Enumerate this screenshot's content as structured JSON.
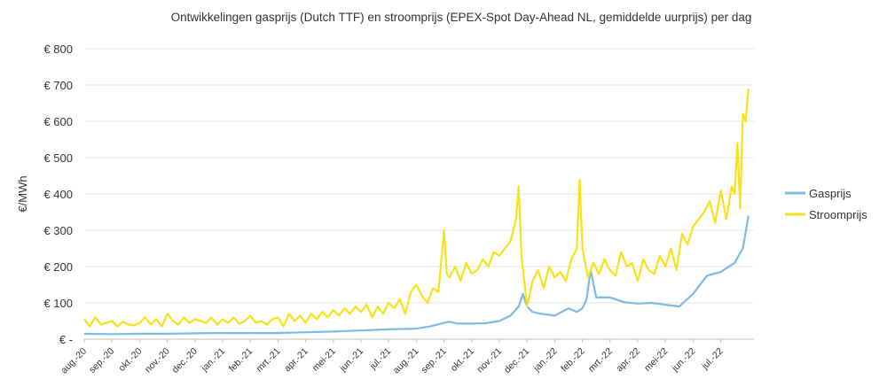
{
  "chart_data": {
    "type": "line",
    "title": "Ontwikkelingen gasprijs (Dutch TTF) en stroomprijs (EPEX-Spot Day-Ahead NL, gemiddelde uurprijs) per dag",
    "ylabel": "€/MWh",
    "ylim": [
      0,
      800
    ],
    "yticks": [
      {
        "value": 0,
        "label": "€ -"
      },
      {
        "value": 100,
        "label": "€ 100"
      },
      {
        "value": 200,
        "label": "€ 200"
      },
      {
        "value": 300,
        "label": "€ 300"
      },
      {
        "value": 400,
        "label": "€ 400"
      },
      {
        "value": 500,
        "label": "€ 500"
      },
      {
        "value": 600,
        "label": "€ 600"
      },
      {
        "value": 700,
        "label": "€ 700"
      },
      {
        "value": 800,
        "label": "€ 800"
      }
    ],
    "x_tick_labels": [
      "aug.-20",
      "sep.-20",
      "okt.-20",
      "nov.-20",
      "dec.-20",
      "jan.-21",
      "feb.-21",
      "mrt.-21",
      "apr.-21",
      "mei-21",
      "jun.-21",
      "jul.-21",
      "aug.-21",
      "sep.-21",
      "okt.-21",
      "nov.-21",
      "dec.-21",
      "jan.-22",
      "feb.-22",
      "mrt.-22",
      "apr.-22",
      "mei-22",
      "jun.-22",
      "jul.-22"
    ],
    "grid": true,
    "legend_position": "right",
    "x_unit": "month index (0 = aug.-20)",
    "series": [
      {
        "name": "Gasprijs",
        "color": "#7fb9e6",
        "x": [
          0,
          1,
          2,
          3,
          4,
          5,
          6,
          7,
          8,
          9,
          10,
          11,
          12,
          12.5,
          13,
          13.2,
          13.5,
          14,
          14.5,
          15,
          15.4,
          15.7,
          15.85,
          16,
          16.2,
          16.5,
          17,
          17.5,
          17.8,
          18,
          18.15,
          18.3,
          18.5,
          19,
          19.5,
          20,
          20.5,
          21,
          21.5,
          22,
          22.5,
          23,
          23.5,
          23.8,
          24
        ],
        "values": [
          15,
          14,
          15,
          15,
          16,
          17,
          17,
          17,
          19,
          21,
          24,
          27,
          29,
          35,
          45,
          48,
          43,
          43,
          44,
          50,
          65,
          90,
          125,
          90,
          75,
          70,
          65,
          85,
          75,
          85,
          110,
          190,
          115,
          115,
          102,
          98,
          100,
          95,
          90,
          125,
          175,
          185,
          210,
          250,
          340
        ]
      },
      {
        "name": "Stroomprijs",
        "color": "#f7e21a",
        "x": [
          0,
          0.2,
          0.4,
          0.6,
          0.8,
          1,
          1.2,
          1.4,
          1.6,
          1.8,
          2,
          2.2,
          2.4,
          2.6,
          2.8,
          3,
          3.2,
          3.4,
          3.6,
          3.8,
          4,
          4.2,
          4.4,
          4.6,
          4.8,
          5,
          5.2,
          5.4,
          5.6,
          5.8,
          6,
          6.2,
          6.4,
          6.6,
          6.8,
          7,
          7.2,
          7.4,
          7.6,
          7.8,
          8,
          8.2,
          8.4,
          8.6,
          8.8,
          9,
          9.2,
          9.4,
          9.6,
          9.8,
          10,
          10.2,
          10.4,
          10.6,
          10.8,
          11,
          11.2,
          11.4,
          11.6,
          11.8,
          12,
          12.2,
          12.4,
          12.6,
          12.8,
          13,
          13.1,
          13.2,
          13.4,
          13.6,
          13.8,
          14,
          14.2,
          14.4,
          14.6,
          14.8,
          15,
          15.2,
          15.4,
          15.6,
          15.7,
          15.8,
          16,
          16.2,
          16.4,
          16.6,
          16.8,
          17,
          17.2,
          17.4,
          17.6,
          17.8,
          17.9,
          18,
          18.2,
          18.4,
          18.6,
          18.8,
          19,
          19.2,
          19.4,
          19.6,
          19.8,
          20,
          20.2,
          20.4,
          20.6,
          20.8,
          21,
          21.2,
          21.4,
          21.6,
          21.8,
          22,
          22.2,
          22.4,
          22.6,
          22.8,
          23,
          23.2,
          23.4,
          23.5,
          23.6,
          23.7,
          23.8,
          23.9,
          24
        ],
        "values": [
          55,
          35,
          60,
          40,
          45,
          50,
          35,
          48,
          40,
          38,
          45,
          60,
          40,
          55,
          35,
          70,
          50,
          40,
          60,
          45,
          55,
          50,
          45,
          60,
          40,
          55,
          45,
          60,
          42,
          50,
          65,
          45,
          50,
          40,
          55,
          60,
          35,
          70,
          50,
          65,
          45,
          70,
          55,
          75,
          60,
          80,
          65,
          85,
          70,
          90,
          75,
          95,
          60,
          90,
          70,
          100,
          85,
          110,
          70,
          130,
          150,
          120,
          100,
          140,
          130,
          300,
          180,
          170,
          200,
          160,
          210,
          180,
          190,
          220,
          200,
          240,
          230,
          250,
          270,
          330,
          420,
          230,
          90,
          160,
          190,
          140,
          200,
          170,
          185,
          160,
          220,
          250,
          440,
          250,
          170,
          210,
          180,
          220,
          190,
          175,
          240,
          200,
          210,
          160,
          220,
          190,
          180,
          230,
          200,
          250,
          190,
          290,
          260,
          310,
          330,
          350,
          380,
          320,
          410,
          330,
          420,
          400,
          540,
          360,
          620,
          600,
          690
        ]
      }
    ]
  }
}
